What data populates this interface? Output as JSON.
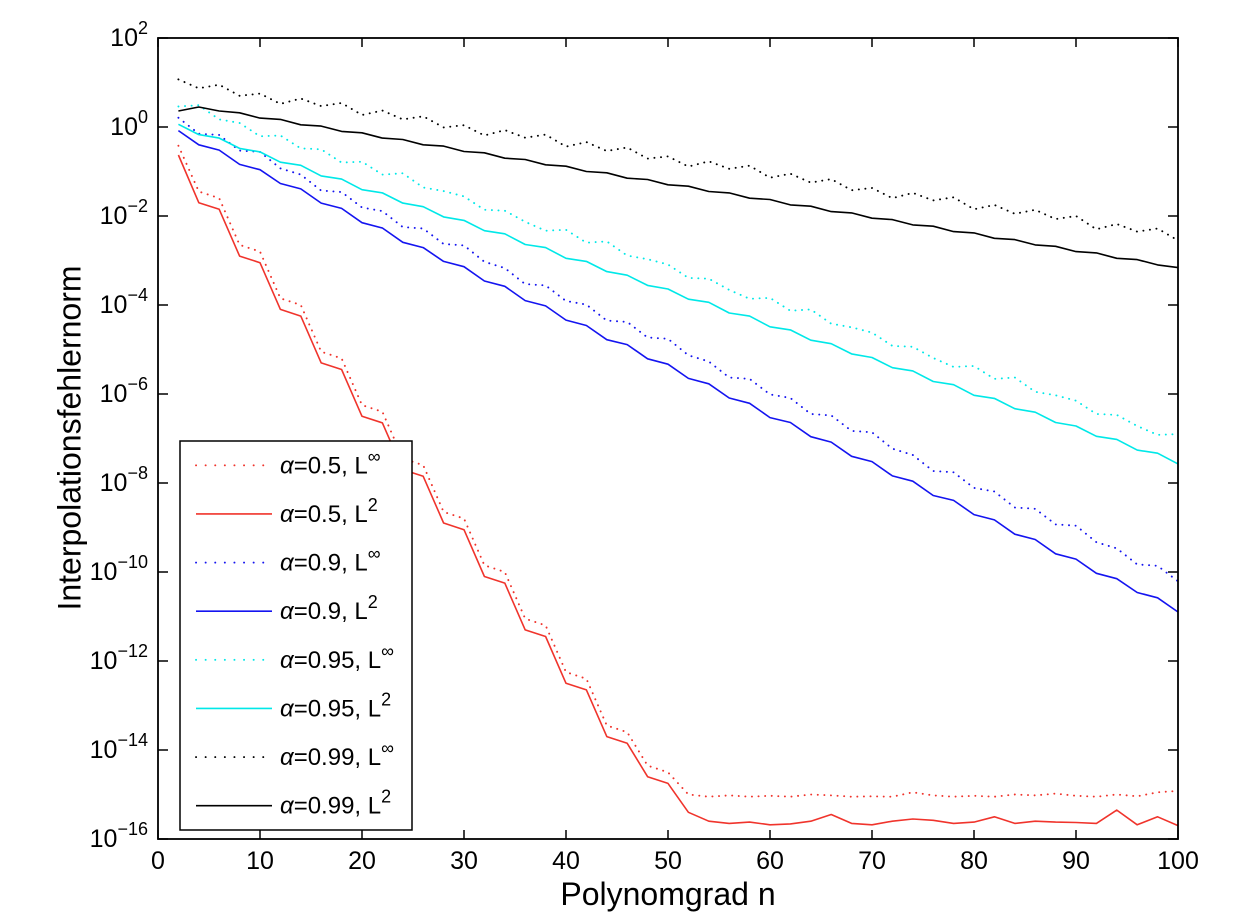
{
  "figure": {
    "background": "#ffffff",
    "axis_color": "#000000",
    "xlabel": "Polynomgrad n",
    "ylabel": "Interpolationsfehlernorm"
  },
  "chart_data": {
    "type": "line",
    "title": "",
    "xlabel": "Polynomgrad n",
    "ylabel": "Interpolationsfehlernorm",
    "grid": false,
    "legend_position": "lower-left",
    "x_axis": {
      "min": 0,
      "max": 100,
      "ticks": [
        0,
        10,
        20,
        30,
        40,
        50,
        60,
        70,
        80,
        90,
        100
      ]
    },
    "y_axis": {
      "scale": "log10",
      "min_exponent": -16,
      "max_exponent": 2,
      "tick_exponents": [
        2,
        0,
        -2,
        -4,
        -6,
        -8,
        -10,
        -12,
        -14,
        -16
      ],
      "tick_base": "10"
    },
    "x": [
      2,
      4,
      6,
      8,
      10,
      12,
      14,
      16,
      18,
      20,
      22,
      24,
      26,
      28,
      30,
      32,
      34,
      36,
      38,
      40,
      42,
      44,
      46,
      48,
      50,
      52,
      54,
      56,
      58,
      60,
      62,
      64,
      66,
      68,
      70,
      72,
      74,
      76,
      78,
      80,
      82,
      84,
      86,
      88,
      90,
      92,
      94,
      96,
      98,
      100
    ],
    "series": [
      {
        "name": "α=0.5, L^∞",
        "color": "#f0342c",
        "line_style": "dotted",
        "log10_values": [
          -0.42,
          -1.45,
          -1.6,
          -2.65,
          -2.8,
          -3.85,
          -4.0,
          -5.05,
          -5.2,
          -6.25,
          -6.4,
          -7.45,
          -7.6,
          -8.65,
          -8.8,
          -9.85,
          -10.0,
          -11.05,
          -11.2,
          -12.25,
          -12.4,
          -13.45,
          -13.6,
          -14.35,
          -14.5,
          -15.0,
          -15.05,
          -15.02,
          -15.05,
          -15.03,
          -15.05,
          -15.0,
          -15.02,
          -15.05,
          -15.04,
          -15.05,
          -14.95,
          -15.02,
          -15.05,
          -15.03,
          -15.05,
          -15.0,
          -15.02,
          -14.98,
          -15.03,
          -15.05,
          -15.0,
          -15.04,
          -14.95,
          -14.92
        ]
      },
      {
        "name": "α=0.5, L^2",
        "color": "#f0342c",
        "line_style": "solid",
        "log10_values": [
          -0.63,
          -1.7,
          -1.85,
          -2.9,
          -3.05,
          -4.1,
          -4.25,
          -5.3,
          -5.45,
          -6.5,
          -6.65,
          -7.7,
          -7.85,
          -8.9,
          -9.05,
          -10.1,
          -10.25,
          -11.3,
          -11.45,
          -12.5,
          -12.65,
          -13.7,
          -13.85,
          -14.6,
          -14.75,
          -15.4,
          -15.6,
          -15.65,
          -15.62,
          -15.68,
          -15.66,
          -15.6,
          -15.45,
          -15.65,
          -15.68,
          -15.6,
          -15.55,
          -15.58,
          -15.65,
          -15.62,
          -15.5,
          -15.65,
          -15.6,
          -15.62,
          -15.63,
          -15.65,
          -15.35,
          -15.68,
          -15.5,
          -15.7
        ]
      },
      {
        "name": "α=0.9, L^∞",
        "color": "#1414f0",
        "line_style": "dotted",
        "log10_values": [
          0.21,
          -0.15,
          -0.18,
          -0.53,
          -0.56,
          -0.93,
          -1.07,
          -1.43,
          -1.46,
          -1.81,
          -1.89,
          -2.25,
          -2.28,
          -2.63,
          -2.66,
          -3.03,
          -3.17,
          -3.53,
          -3.56,
          -3.91,
          -3.99,
          -4.35,
          -4.38,
          -4.73,
          -4.76,
          -5.13,
          -5.27,
          -5.63,
          -5.66,
          -6.01,
          -6.09,
          -6.45,
          -6.48,
          -6.83,
          -6.86,
          -7.23,
          -7.37,
          -7.73,
          -7.76,
          -8.11,
          -8.19,
          -8.55,
          -8.58,
          -8.93,
          -8.96,
          -9.33,
          -9.47,
          -9.83,
          -9.86,
          -10.21
        ]
      },
      {
        "name": "α=0.9, L^2",
        "color": "#1414f0",
        "line_style": "solid",
        "log10_values": [
          -0.08,
          -0.4,
          -0.52,
          -0.84,
          -0.96,
          -1.27,
          -1.39,
          -1.71,
          -1.83,
          -2.15,
          -2.27,
          -2.59,
          -2.71,
          -3.02,
          -3.14,
          -3.46,
          -3.58,
          -3.9,
          -4.02,
          -4.34,
          -4.46,
          -4.78,
          -4.89,
          -5.21,
          -5.33,
          -5.65,
          -5.77,
          -6.09,
          -6.21,
          -6.53,
          -6.64,
          -6.96,
          -7.08,
          -7.4,
          -7.52,
          -7.84,
          -7.96,
          -8.28,
          -8.39,
          -8.71,
          -8.83,
          -9.15,
          -9.27,
          -9.59,
          -9.71,
          -10.03,
          -10.15,
          -10.46,
          -10.58,
          -10.9
        ]
      },
      {
        "name": "α=0.95, L^∞",
        "color": "#00e8e8",
        "line_style": "dotted",
        "log10_values": [
          0.46,
          0.49,
          0.17,
          0.09,
          -0.21,
          -0.19,
          -0.48,
          -0.5,
          -0.8,
          -0.78,
          -1.07,
          -1.04,
          -1.36,
          -1.44,
          -1.56,
          -1.86,
          -1.88,
          -2.13,
          -2.33,
          -2.31,
          -2.6,
          -2.57,
          -2.89,
          -2.97,
          -3.09,
          -3.39,
          -3.41,
          -3.66,
          -3.86,
          -3.84,
          -4.13,
          -4.1,
          -4.42,
          -4.5,
          -4.62,
          -4.92,
          -4.94,
          -5.19,
          -5.39,
          -5.37,
          -5.66,
          -5.63,
          -5.95,
          -6.03,
          -6.15,
          -6.45,
          -6.47,
          -6.72,
          -6.92,
          -6.9
        ]
      },
      {
        "name": "α=0.95, L^2",
        "color": "#00e8e8",
        "line_style": "solid",
        "log10_values": [
          0.06,
          -0.17,
          -0.25,
          -0.48,
          -0.56,
          -0.79,
          -0.86,
          -1.1,
          -1.17,
          -1.41,
          -1.48,
          -1.71,
          -1.79,
          -2.02,
          -2.1,
          -2.33,
          -2.4,
          -2.64,
          -2.71,
          -2.95,
          -3.02,
          -3.25,
          -3.33,
          -3.56,
          -3.64,
          -3.87,
          -3.94,
          -4.18,
          -4.25,
          -4.49,
          -4.56,
          -4.79,
          -4.87,
          -5.1,
          -5.18,
          -5.41,
          -5.48,
          -5.72,
          -5.79,
          -6.03,
          -6.1,
          -6.33,
          -6.41,
          -6.64,
          -6.72,
          -6.95,
          -7.02,
          -7.26,
          -7.33,
          -7.57
        ]
      },
      {
        "name": "α=0.99, L^∞",
        "color": "#000000",
        "line_style": "dotted",
        "log10_values": [
          1.07,
          0.87,
          0.95,
          0.7,
          0.75,
          0.52,
          0.64,
          0.47,
          0.54,
          0.27,
          0.37,
          0.17,
          0.24,
          -0.01,
          0.04,
          -0.19,
          -0.07,
          -0.24,
          -0.17,
          -0.44,
          -0.34,
          -0.54,
          -0.46,
          -0.71,
          -0.66,
          -0.89,
          -0.77,
          -0.94,
          -0.87,
          -1.14,
          -1.05,
          -1.25,
          -1.17,
          -1.42,
          -1.37,
          -1.6,
          -1.48,
          -1.65,
          -1.58,
          -1.85,
          -1.75,
          -1.95,
          -1.86,
          -2.07,
          -2.0,
          -2.3,
          -2.18,
          -2.35,
          -2.28,
          -2.55
        ]
      },
      {
        "name": "α=0.99, L^2",
        "color": "#000000",
        "line_style": "solid",
        "log10_values": [
          0.36,
          0.45,
          0.36,
          0.32,
          0.2,
          0.17,
          0.05,
          0.02,
          -0.1,
          -0.13,
          -0.25,
          -0.28,
          -0.4,
          -0.43,
          -0.55,
          -0.58,
          -0.7,
          -0.73,
          -0.85,
          -0.88,
          -1.0,
          -1.03,
          -1.15,
          -1.18,
          -1.3,
          -1.33,
          -1.45,
          -1.48,
          -1.6,
          -1.63,
          -1.75,
          -1.78,
          -1.9,
          -1.93,
          -2.05,
          -2.08,
          -2.2,
          -2.23,
          -2.35,
          -2.38,
          -2.5,
          -2.53,
          -2.65,
          -2.68,
          -2.8,
          -2.83,
          -2.95,
          -2.98,
          -3.1,
          -3.16
        ]
      }
    ],
    "legend_entries": [
      "α=0.5, L^∞",
      "α=0.5, L^2",
      "α=0.9, L^∞",
      "α=0.9, L^2",
      "α=0.95, L^∞",
      "α=0.95, L^2",
      "α=0.99, L^∞",
      "α=0.99, L^2"
    ]
  }
}
